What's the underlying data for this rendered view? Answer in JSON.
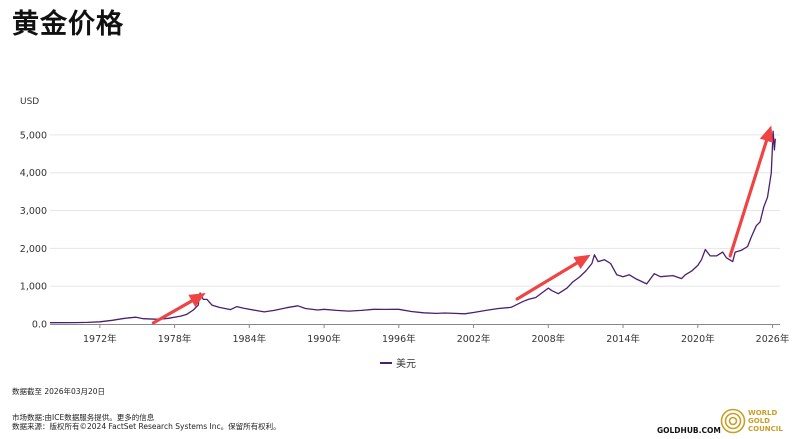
{
  "title": "黄金价格",
  "chart_data": {
    "type": "line",
    "ylabel": "USD",
    "ylim": [
      0,
      5500
    ],
    "yticks": [
      0,
      1000,
      2000,
      3000,
      4000,
      5000
    ],
    "ytick_labels": [
      "0.0",
      "1,000",
      "2,000",
      "3,000",
      "4,000",
      "5,000"
    ],
    "xlim": [
      1968.0,
      2026.6
    ],
    "xticks": [
      1972,
      1978,
      1984,
      1990,
      1996,
      2002,
      2008,
      2014,
      2020,
      2026
    ],
    "xtick_labels": [
      "1972年",
      "1978年",
      "1984年",
      "1990年",
      "1996年",
      "2002年",
      "2008年",
      "2014年",
      "2020年",
      "2026年"
    ],
    "series": [
      {
        "name": "美元",
        "color": "#4b1f6f",
        "x": [
          1968.0,
          1970.0,
          1971.0,
          1972.0,
          1973.0,
          1974.0,
          1974.9,
          1975.5,
          1976.7,
          1977.5,
          1978.5,
          1979.0,
          1979.5,
          1979.9,
          1980.05,
          1980.3,
          1980.6,
          1981.0,
          1981.6,
          1982.5,
          1983.0,
          1983.5,
          1984.5,
          1985.2,
          1986.0,
          1987.0,
          1987.9,
          1988.5,
          1989.5,
          1990.0,
          1991.0,
          1992.0,
          1993.0,
          1994.0,
          1995.0,
          1996.0,
          1997.0,
          1998.0,
          1999.0,
          1999.7,
          2000.5,
          2001.3,
          2002.0,
          2003.0,
          2004.0,
          2005.0,
          2006.0,
          2006.4,
          2007.0,
          2008.0,
          2008.3,
          2008.8,
          2009.5,
          2010.0,
          2010.5,
          2011.0,
          2011.5,
          2011.7,
          2012.0,
          2012.5,
          2013.0,
          2013.5,
          2014.0,
          2014.5,
          2015.0,
          2015.9,
          2016.5,
          2017.0,
          2018.0,
          2018.7,
          2019.0,
          2019.5,
          2020.0,
          2020.3,
          2020.6,
          2021.0,
          2021.5,
          2022.0,
          2022.3,
          2022.8,
          2023.0,
          2023.5,
          2024.0,
          2024.3,
          2024.7,
          2025.0,
          2025.3,
          2025.6,
          2025.9,
          2026.05,
          2026.15,
          2026.22
        ],
        "y": [
          35,
          36,
          41,
          58,
          97,
          150,
          180,
          140,
          125,
          150,
          210,
          260,
          370,
          500,
          820,
          650,
          650,
          500,
          440,
          380,
          460,
          420,
          360,
          320,
          360,
          430,
          480,
          410,
          370,
          390,
          360,
          340,
          360,
          390,
          385,
          390,
          330,
          295,
          280,
          290,
          280,
          270,
          305,
          360,
          410,
          440,
          600,
          650,
          700,
          950,
          880,
          800,
          950,
          1120,
          1240,
          1400,
          1600,
          1830,
          1650,
          1700,
          1600,
          1300,
          1250,
          1300,
          1200,
          1060,
          1330,
          1250,
          1280,
          1200,
          1300,
          1400,
          1550,
          1700,
          1970,
          1800,
          1800,
          1900,
          1750,
          1650,
          1900,
          1950,
          2050,
          2300,
          2600,
          2700,
          3100,
          3350,
          4000,
          5100,
          4600,
          4900
        ]
      }
    ],
    "annotations": [
      {
        "type": "arrow",
        "color": "#ef4444",
        "from": [
          1976.3,
          30
        ],
        "to": [
          1980.5,
          820
        ]
      },
      {
        "type": "arrow",
        "color": "#ef4444",
        "from": [
          2005.5,
          660
        ],
        "to": [
          2011.4,
          1830
        ]
      },
      {
        "type": "arrow",
        "color": "#ef4444",
        "from": [
          2022.6,
          1800
        ],
        "to": [
          2025.9,
          5250
        ]
      }
    ]
  },
  "legend": {
    "label": "美元",
    "color": "#4b1f6f"
  },
  "footer": {
    "as_of": "数据截至 2026年03月20日",
    "market_prefix": "市场数据:由ICE数据服务提供。",
    "market_link": "更多的信息",
    "source": "数据来源：版权所有©2024 FactSet Research Systems Inc。保留所有权利。"
  },
  "brand": {
    "url": "GOLDHUB.COM",
    "logo_lines": [
      "WORLD",
      "GOLD",
      "COUNCIL"
    ],
    "logo_color": "#c8a028"
  }
}
